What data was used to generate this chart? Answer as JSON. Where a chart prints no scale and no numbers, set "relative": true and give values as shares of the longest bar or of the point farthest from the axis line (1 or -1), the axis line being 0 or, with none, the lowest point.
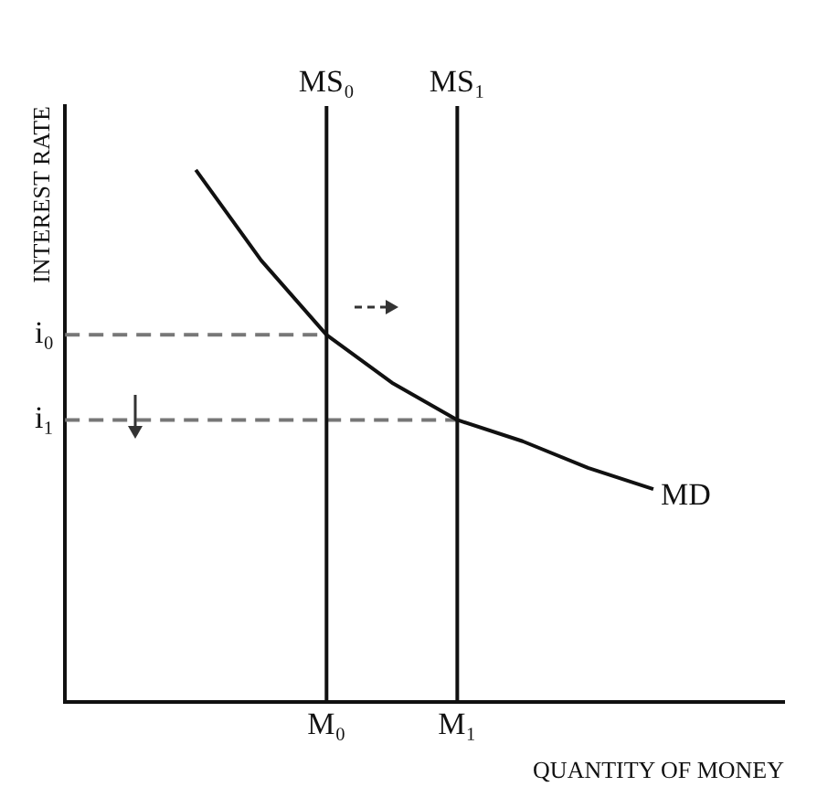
{
  "chart_data": {
    "type": "line",
    "relative": true,
    "ylabel": "INTEREST RATE",
    "xlabel": "QUANTITY OF MONEY",
    "categories": [
      null,
      null,
      null,
      null,
      "M₀",
      null,
      "M₁",
      null,
      null,
      null,
      null,
      null
    ],
    "grid": false,
    "legend": false,
    "marker": "none",
    "series": [
      {
        "name": "MD",
        "color": "#111111",
        "values": [
          null,
          null,
          1.0,
          0.83,
          0.69,
          0.6,
          0.53,
          0.49,
          0.44,
          0.4,
          null,
          null
        ]
      },
      {
        "name": "i₀",
        "color": "#777777",
        "line_style": "dashed",
        "values": [
          0.69,
          0.69,
          0.69,
          0.69,
          0.69,
          null,
          null,
          null,
          null,
          null,
          null,
          null
        ]
      },
      {
        "name": "i₁",
        "color": "#777777",
        "line_style": "dashed",
        "values": [
          0.53,
          0.53,
          0.53,
          0.53,
          0.53,
          0.53,
          0.53,
          null,
          null,
          null,
          null,
          null
        ]
      }
    ],
    "ref_lines": [
      {
        "axis": "x",
        "value": "M₀",
        "label": "MS₀",
        "color": "#111111"
      },
      {
        "axis": "x",
        "value": "M₁",
        "label": "MS₁",
        "color": "#111111"
      }
    ]
  }
}
